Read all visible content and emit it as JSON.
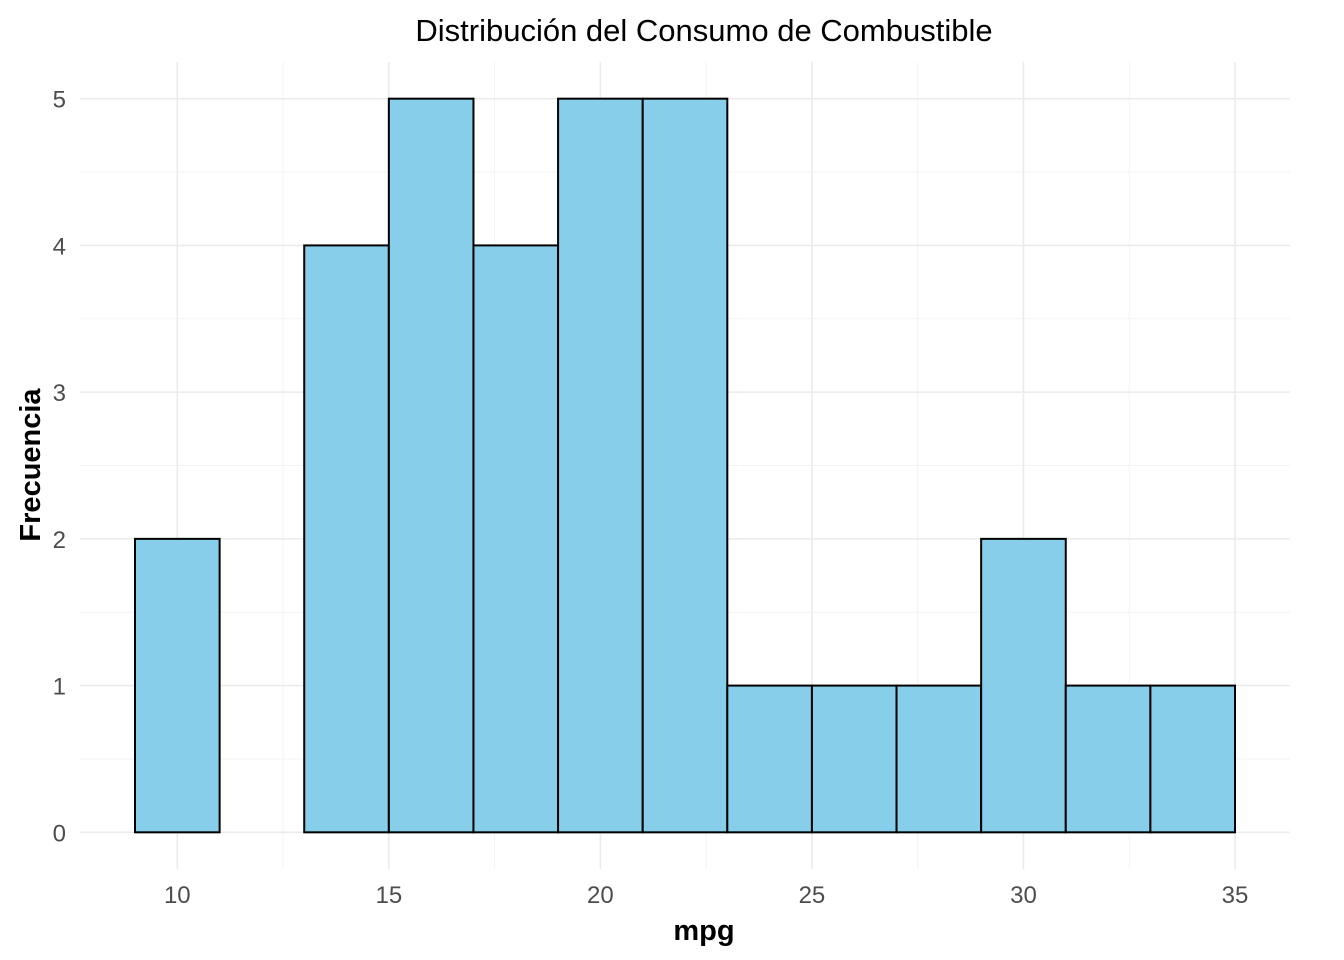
{
  "chart_data": {
    "type": "bar",
    "title": "Distribución del Consumo de Combustible",
    "xlabel": "mpg",
    "ylabel": "Frecuencia",
    "bin_width": 2,
    "bins": [
      {
        "x0": 9,
        "x1": 11,
        "count": 2
      },
      {
        "x0": 11,
        "x1": 13,
        "count": 0
      },
      {
        "x0": 13,
        "x1": 15,
        "count": 4
      },
      {
        "x0": 15,
        "x1": 17,
        "count": 5
      },
      {
        "x0": 17,
        "x1": 19,
        "count": 4
      },
      {
        "x0": 19,
        "x1": 21,
        "count": 5
      },
      {
        "x0": 21,
        "x1": 23,
        "count": 5
      },
      {
        "x0": 23,
        "x1": 25,
        "count": 1
      },
      {
        "x0": 25,
        "x1": 27,
        "count": 1
      },
      {
        "x0": 27,
        "x1": 29,
        "count": 1
      },
      {
        "x0": 29,
        "x1": 31,
        "count": 2
      },
      {
        "x0": 31,
        "x1": 33,
        "count": 1
      },
      {
        "x0": 33,
        "x1": 35,
        "count": 1
      }
    ],
    "x_ticks": [
      "10",
      "15",
      "20",
      "25",
      "30",
      "35"
    ],
    "y_ticks": [
      "0",
      "1",
      "2",
      "3",
      "4",
      "5"
    ],
    "xlim": [
      7.7,
      36.3
    ],
    "ylim": [
      -0.25,
      5.25
    ],
    "fill_color": "#87CEEB",
    "outline_color": "#000000",
    "grid": true
  }
}
